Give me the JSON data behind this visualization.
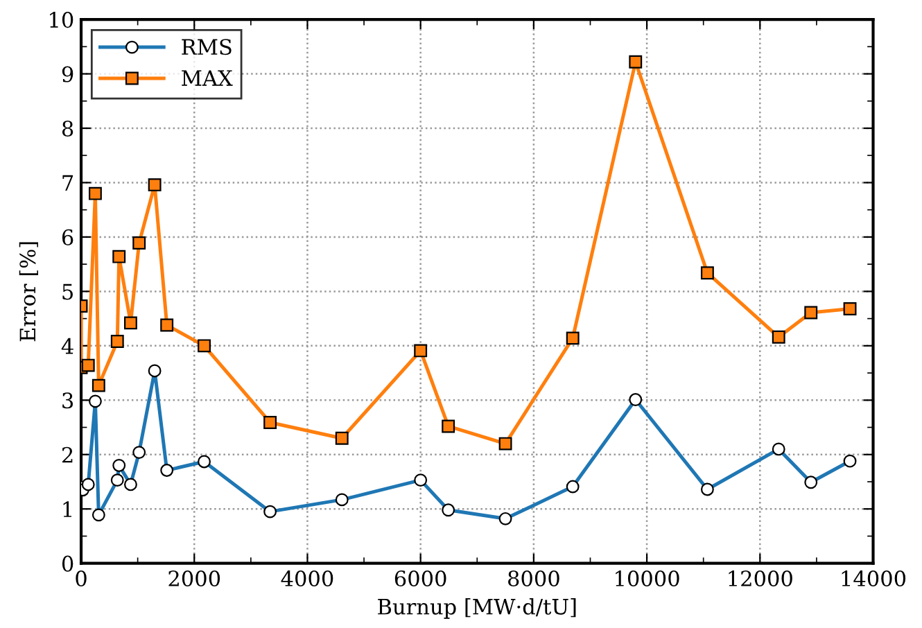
{
  "chart_data": {
    "type": "line",
    "xlabel": "Burnup [MW·d/tU]",
    "ylabel": "Error [%]",
    "xlim": [
      0,
      14000
    ],
    "xticks": [
      0,
      2000,
      4000,
      6000,
      8000,
      10000,
      12000,
      14000
    ],
    "ylim": [
      0,
      10
    ],
    "yticks": [
      0,
      1,
      2,
      3,
      4,
      5,
      6,
      7,
      8,
      9,
      10
    ],
    "grid": true,
    "legend": "top left",
    "series": [
      {
        "name": "RMS",
        "color": "#1f77b4",
        "marker": "circle",
        "x": [
          0,
          30,
          125,
          250,
          310,
          640,
          670,
          875,
          1025,
          1300,
          1515,
          2175,
          3340,
          4610,
          6000,
          6490,
          7500,
          8690,
          9800,
          11070,
          12330,
          12900,
          13590
        ],
        "values": [
          1.4,
          1.35,
          1.45,
          2.98,
          0.89,
          1.53,
          1.8,
          1.45,
          2.04,
          3.54,
          1.71,
          1.87,
          0.95,
          1.17,
          1.53,
          0.98,
          0.82,
          1.41,
          3.01,
          1.36,
          2.1,
          1.49,
          1.88
        ]
      },
      {
        "name": "MAX",
        "color": "#ff7f0e",
        "marker": "square",
        "x": [
          0,
          0,
          125,
          250,
          310,
          640,
          670,
          875,
          1025,
          1300,
          1515,
          2175,
          3340,
          4610,
          6000,
          6490,
          7500,
          8690,
          9800,
          11070,
          12330,
          12900,
          13590
        ],
        "values": [
          4.73,
          3.6,
          3.64,
          6.8,
          3.27,
          4.08,
          5.64,
          4.42,
          5.89,
          6.96,
          4.38,
          4.0,
          2.59,
          2.3,
          3.91,
          2.52,
          2.2,
          4.14,
          9.22,
          5.34,
          4.16,
          4.61,
          4.68
        ]
      }
    ]
  }
}
